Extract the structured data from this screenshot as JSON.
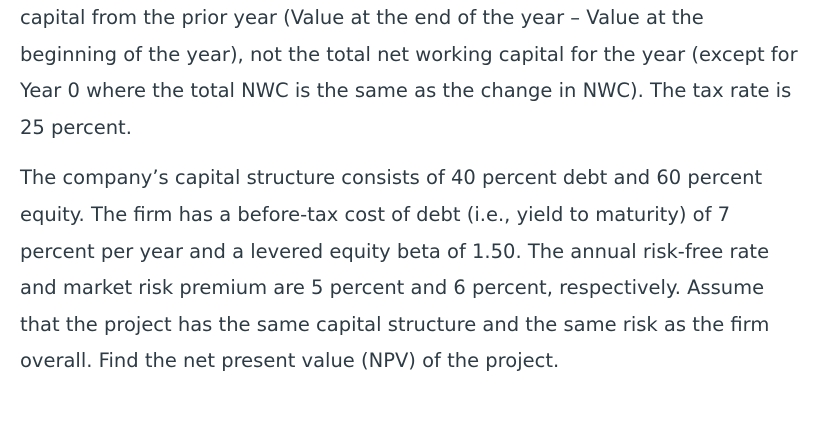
{
  "paragraphs": [
    "capital from the prior year (Value at the end of the year – Value at the beginning of the year), not the total net working capital for the year (except for Year 0 where the total NWC is the same as the change in NWC).  The tax rate is 25 percent.",
    "The company’s capital structure consists of 40 percent debt and 60 percent equity.  The firm has a before-tax cost of debt (i.e., yield to maturity) of 7 percent per year and a levered equity beta of 1.50.  The annual risk-free rate and market risk premium are 5 percent and 6 percent, respectively.  Assume that the project has the same capital structure and the same risk as the firm overall.  Find the net present value (NPV) of the project."
  ]
}
